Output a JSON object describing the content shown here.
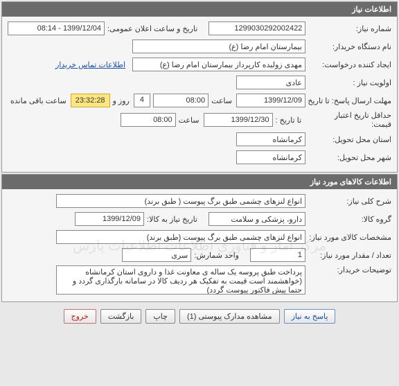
{
  "panel1": {
    "title": "اطلاعات نیاز",
    "request_no_label": "شماره نیاز:",
    "request_no": "1299030292002422",
    "announce_label": "تاریخ و ساعت اعلان عمومی:",
    "announce_value": "1399/12/04 - 08:14",
    "org_name_label": "نام دستگاه خریدار:",
    "org_name": "بیمارستان امام رضا (ع)",
    "creator_label": "ایجاد کننده درخواست:",
    "creator": "مهدی زولیده کارپرداز بیمارستان امام رضا (ع)",
    "contact_link": "اطلاعات تماس خریدار",
    "priority_label": "اولویت نیاز :",
    "priority": "عادی",
    "deadline_label": "مهلت ارسال پاسخ:  تا تاریخ :",
    "deadline_date": "1399/12/09",
    "hour_label": "ساعت",
    "deadline_time": "08:00",
    "days_label_pre": "",
    "days_value": "4",
    "days_label_post": "روز و",
    "countdown": "23:32:28",
    "remaining_label": "ساعت باقی مانده",
    "min_valid_label_1": "حداقل تاریخ اعتبار",
    "min_valid_label_2": "قیمت:",
    "min_valid_sub": "تا تاریخ :",
    "min_valid_date": "1399/12/30",
    "min_valid_time": "08:00",
    "province_label": "استان محل تحویل:",
    "province": "کرمانشاه",
    "city_label": "شهر محل تحویل:",
    "city": "کرمانشاه"
  },
  "panel2": {
    "title": "اطلاعات کالاهای مورد نیاز",
    "desc_label": "شرح کلی نیاز:",
    "desc": "انواع لنزهای چشمی طبق برگ پیوست ( طبق برند)",
    "group_label": "گروه کالا:",
    "group": "دارو، پزشکی و سلامت",
    "requested_date_label": "تاریخ نیاز به کالا:",
    "requested_date": "1399/12/09",
    "spec_label": "مشخصات کالای مورد نیاز:",
    "spec": "انواع لنزهای چشمی طبق برگ پیوست (طبق برند)",
    "qty_label": "تعداد / مقدار مورد نیاز:",
    "qty": "1",
    "unit_label": "واحد شمارش:",
    "unit": "سری",
    "buyer_notes_label": "توضیحات خریدار:",
    "buyer_notes": "پرداخت طبق پروسه یک ساله ی معاونت غذا و داروی استان کرمانشاه (خواهشمند است قیمت به تفکیک هر ردیف کالا در سامانه بارگذاری گردد و حتما پیش فاکتور پیوست گردد)"
  },
  "buttons": {
    "respond": "پاسخ به نیاز",
    "attachments": "مشاهده مدارک پیوستی (1)",
    "print": "چاپ",
    "back": "بازگشت",
    "exit": "خروج"
  },
  "watermark": "مرکز آمار و فناوری اطلاعات  اطلاعیات پارس"
}
